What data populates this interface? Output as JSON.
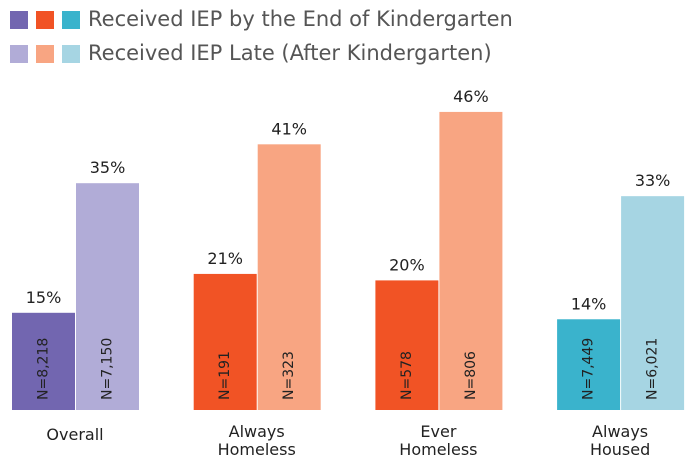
{
  "chart_data": {
    "type": "bar",
    "categories": [
      "Overall",
      "Always Homeless",
      "Ever Homeless",
      "Always Housed"
    ],
    "series": [
      {
        "name": "Received IEP by the End of Kindergarten",
        "colors": [
          "#7266b0",
          "#f15325",
          "#f15325",
          "#3ab3cc"
        ],
        "values": [
          15,
          21,
          20,
          14
        ],
        "value_labels": [
          "15%",
          "21%",
          "20%",
          "14%"
        ],
        "n_labels": [
          "N=8,218",
          "N=191",
          "N=578",
          "N=7,449"
        ]
      },
      {
        "name": "Received IEP Late (After Kindergarten)",
        "colors": [
          "#b1acd7",
          "#f8a582",
          "#f8a582",
          "#a6d5e3"
        ],
        "values": [
          35,
          41,
          46,
          33
        ],
        "value_labels": [
          "35%",
          "41%",
          "46%",
          "33%"
        ],
        "n_labels": [
          "N=7,150",
          "N=323",
          "N=806",
          "N=6,021"
        ]
      }
    ]
  }
}
